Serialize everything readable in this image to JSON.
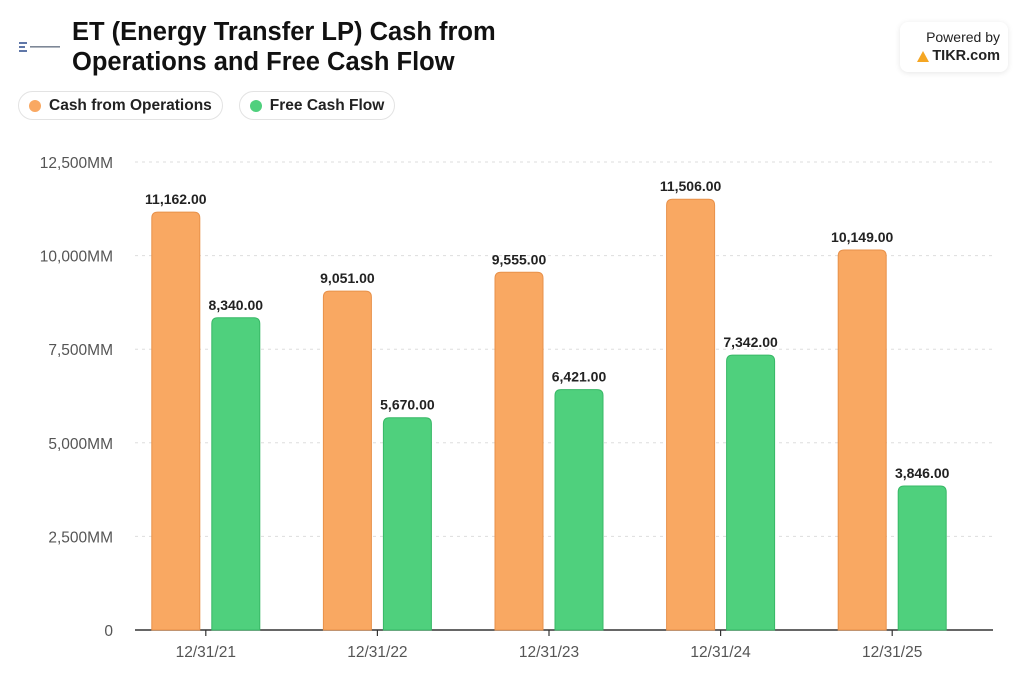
{
  "header": {
    "title": "ET (Energy Transfer LP) Cash from Operations and Free Cash Flow",
    "logo_icon": "energy-transfer-logo"
  },
  "powered_by": {
    "label": "Powered by",
    "brand": "TIKR.com",
    "brand_color": "#f5a623"
  },
  "legend": [
    {
      "name": "Cash from Operations",
      "color": "#f9a862"
    },
    {
      "name": "Free Cash Flow",
      "color": "#4fd07d"
    }
  ],
  "chart_data": {
    "type": "bar",
    "categories": [
      "12/31/21",
      "12/31/22",
      "12/31/23",
      "12/31/24",
      "12/31/25"
    ],
    "series": [
      {
        "name": "Cash from Operations",
        "color": "#f9a862",
        "values": [
          11162.0,
          9051.0,
          9555.0,
          11506.0,
          10149.0
        ]
      },
      {
        "name": "Free Cash Flow",
        "color": "#4fd07d",
        "values": [
          8340.0,
          5670.0,
          6421.0,
          7342.0,
          3846.0
        ]
      }
    ],
    "data_labels": [
      [
        "11,162.00",
        "9,051.00",
        "9,555.00",
        "11,506.00",
        "10,149.00"
      ],
      [
        "8,340.00",
        "5,670.00",
        "6,421.00",
        "7,342.00",
        "3,846.00"
      ]
    ],
    "y_ticks": [
      0,
      2500,
      5000,
      7500,
      10000,
      12500
    ],
    "y_tick_labels": [
      "0",
      "2,500MM",
      "5,000MM",
      "7,500MM",
      "10,000MM",
      "12,500MM"
    ],
    "ylim": [
      0,
      12500
    ],
    "grid": true,
    "legend_position": "top-left"
  }
}
